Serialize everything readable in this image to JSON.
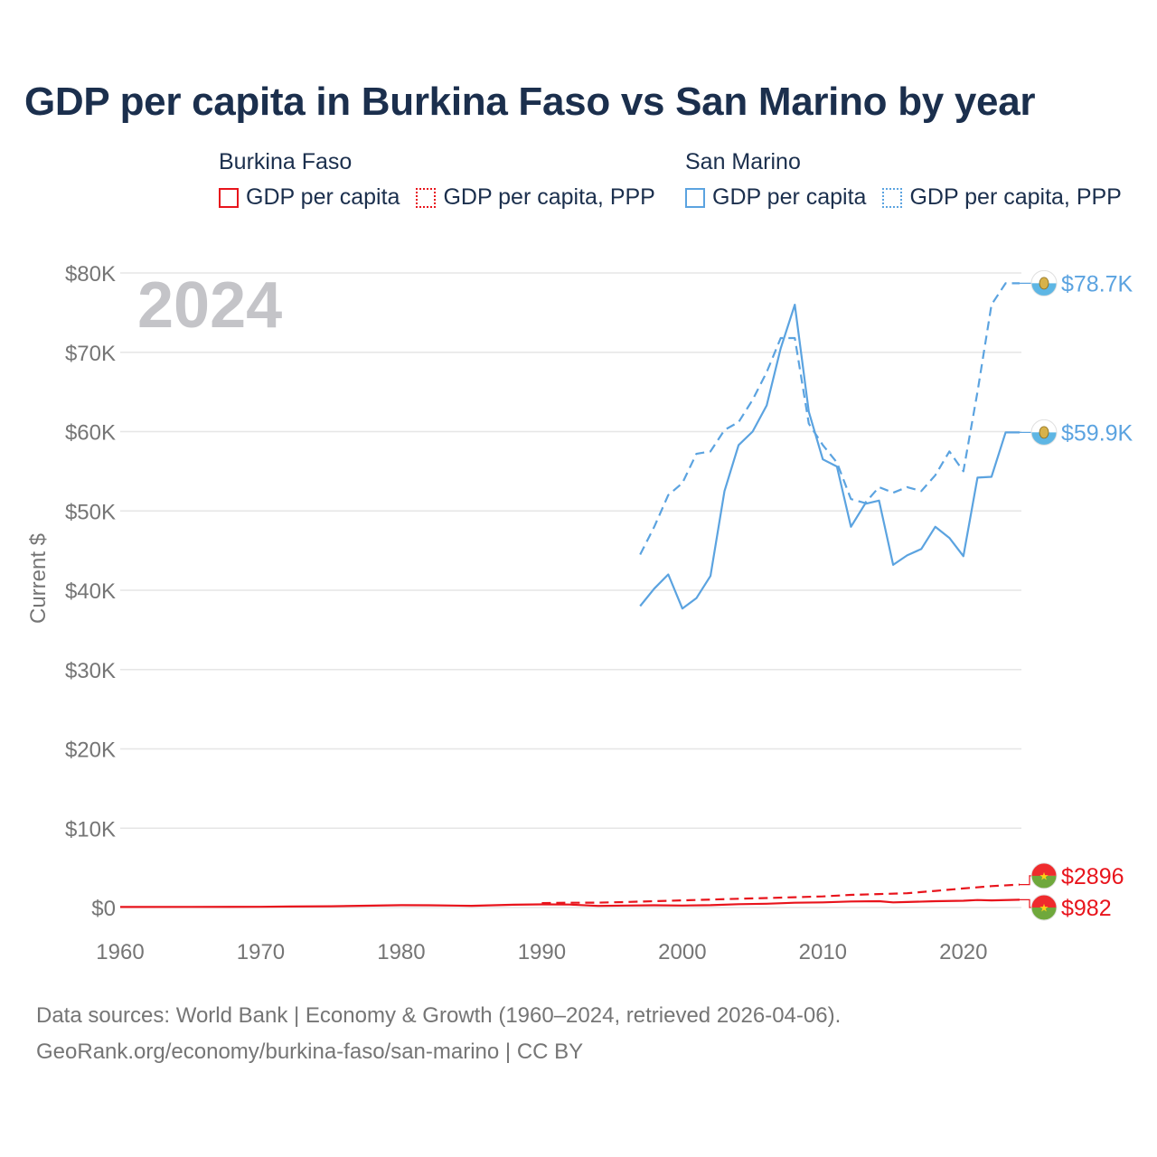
{
  "chart_data": {
    "type": "line",
    "title": "GDP per capita in Burkina Faso vs San Marino by year",
    "ylabel": "Current $",
    "xlabel": "",
    "year_watermark": "2024",
    "xlim": [
      1960,
      2024
    ],
    "ylim": [
      0,
      80000
    ],
    "x_ticks": [
      1960,
      1970,
      1980,
      1990,
      2000,
      2010,
      2020
    ],
    "y_ticks": [
      {
        "value": 0,
        "label": "$0"
      },
      {
        "value": 10000,
        "label": "$10K"
      },
      {
        "value": 20000,
        "label": "$20K"
      },
      {
        "value": 30000,
        "label": "$30K"
      },
      {
        "value": 40000,
        "label": "$40K"
      },
      {
        "value": 50000,
        "label": "$50K"
      },
      {
        "value": 60000,
        "label": "$60K"
      },
      {
        "value": 70000,
        "label": "$70K"
      },
      {
        "value": 80000,
        "label": "$80K"
      }
    ],
    "legend": [
      {
        "country": "Burkina Faso",
        "items": [
          {
            "label": "GDP per capita",
            "color": "#e8141c",
            "style": "solid"
          },
          {
            "label": "GDP per capita, PPP",
            "color": "#e8141c",
            "style": "dotted"
          }
        ]
      },
      {
        "country": "San Marino",
        "items": [
          {
            "label": "GDP per capita",
            "color": "#5ba3e0",
            "style": "solid"
          },
          {
            "label": "GDP per capita, PPP",
            "color": "#5ba3e0",
            "style": "dotted"
          }
        ]
      }
    ],
    "series": [
      {
        "name": "San Marino GDP per capita, PPP",
        "country": "San Marino",
        "color": "#5ba3e0",
        "dash": "10 6",
        "end_label": "$78.7K",
        "label_value": 78700,
        "x": [
          1997,
          1998,
          1999,
          2000,
          2001,
          2002,
          2003,
          2004,
          2005,
          2006,
          2007,
          2008,
          2009,
          2010,
          2011,
          2012,
          2013,
          2014,
          2015,
          2016,
          2017,
          2018,
          2019,
          2020,
          2021,
          2022,
          2023,
          2024
        ],
        "y": [
          44500,
          48000,
          52000,
          53500,
          57200,
          57500,
          60200,
          61200,
          64000,
          67500,
          71800,
          71800,
          61000,
          58300,
          56100,
          51500,
          51000,
          53000,
          52300,
          53000,
          52500,
          54500,
          57500,
          55000,
          65000,
          76000,
          78700,
          78700
        ]
      },
      {
        "name": "San Marino GDP per capita",
        "country": "San Marino",
        "color": "#5ba3e0",
        "dash": "",
        "end_label": "$59.9K",
        "label_value": 59900,
        "x": [
          1997,
          1998,
          1999,
          2000,
          2001,
          2002,
          2003,
          2004,
          2005,
          2006,
          2007,
          2008,
          2009,
          2010,
          2011,
          2012,
          2013,
          2014,
          2015,
          2016,
          2017,
          2018,
          2019,
          2020,
          2021,
          2022,
          2023,
          2024
        ],
        "y": [
          38000,
          40200,
          42000,
          37700,
          39000,
          41800,
          52500,
          58300,
          60000,
          63300,
          70500,
          76000,
          62500,
          56500,
          55600,
          48000,
          50900,
          51300,
          43200,
          44400,
          45200,
          48000,
          46600,
          44300,
          54200,
          54300,
          59900,
          59900
        ]
      },
      {
        "name": "Burkina Faso GDP per capita, PPP",
        "country": "Burkina Faso",
        "color": "#e8141c",
        "dash": "10 6",
        "end_label": "$2896",
        "label_value": 4000,
        "x": [
          1990,
          1992,
          1994,
          1996,
          1998,
          2000,
          2002,
          2004,
          2006,
          2008,
          2010,
          2012,
          2014,
          2016,
          2018,
          2020,
          2022,
          2024
        ],
        "y": [
          560,
          600,
          620,
          700,
          800,
          900,
          1000,
          1100,
          1200,
          1300,
          1400,
          1600,
          1700,
          1800,
          2100,
          2400,
          2700,
          2896
        ]
      },
      {
        "name": "Burkina Faso GDP per capita",
        "country": "Burkina Faso",
        "color": "#e8141c",
        "dash": "",
        "end_label": "$982",
        "label_value": 0,
        "x": [
          1960,
          1965,
          1970,
          1972,
          1975,
          1978,
          1980,
          1982,
          1985,
          1988,
          1990,
          1992,
          1994,
          1996,
          1998,
          2000,
          2002,
          2004,
          2006,
          2008,
          2010,
          2012,
          2014,
          2015,
          2016,
          2018,
          2020,
          2021,
          2022,
          2024
        ],
        "y": [
          70,
          80,
          90,
          120,
          160,
          240,
          300,
          280,
          220,
          350,
          400,
          380,
          200,
          250,
          280,
          250,
          300,
          420,
          480,
          600,
          650,
          760,
          800,
          650,
          700,
          800,
          850,
          950,
          900,
          982
        ]
      }
    ]
  },
  "footer": {
    "line1": "Data sources: World Bank | Economy & Growth (1960–2024, retrieved 2026-04-06).",
    "line2": "GeoRank.org/economy/burkina-faso/san-marino | CC BY"
  }
}
